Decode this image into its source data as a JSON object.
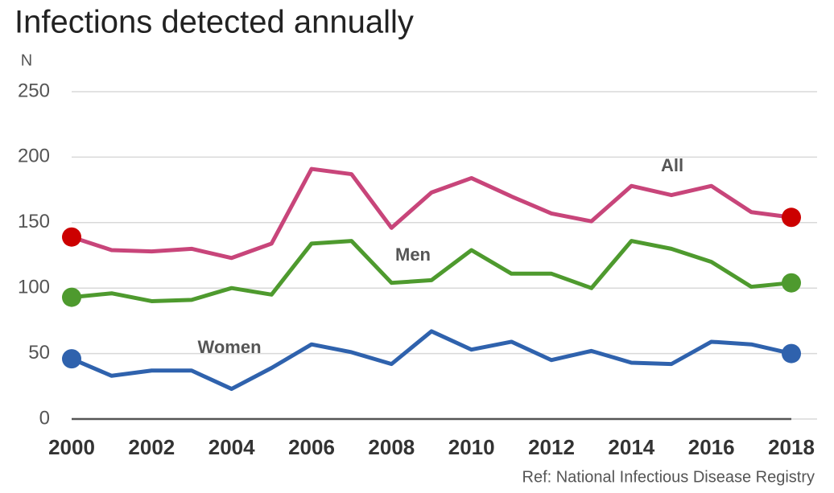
{
  "chart_data": {
    "type": "line",
    "title": "Infections detected annually",
    "y_label": "N",
    "source": "Ref: National Infectious Disease Registry",
    "x": [
      2000,
      2001,
      2002,
      2003,
      2004,
      2005,
      2006,
      2007,
      2008,
      2009,
      2010,
      2011,
      2012,
      2013,
      2014,
      2015,
      2016,
      2017,
      2018
    ],
    "xlim": [
      2000,
      2018
    ],
    "xticks": [
      2000,
      2002,
      2004,
      2006,
      2008,
      2010,
      2012,
      2014,
      2016,
      2018
    ],
    "ylim": [
      0,
      250
    ],
    "yticks": [
      0,
      50,
      100,
      150,
      200,
      250
    ],
    "grid": true,
    "series": [
      {
        "name": "All",
        "color": "#c8457a",
        "endpoint_color": "#cc0000",
        "values": [
          139,
          129,
          128,
          130,
          123,
          134,
          191,
          187,
          146,
          173,
          184,
          170,
          157,
          151,
          178,
          171,
          178,
          158,
          154
        ]
      },
      {
        "name": "Men",
        "color": "#4e9a2e",
        "endpoint_color": "#4e9a2e",
        "values": [
          93,
          96,
          90,
          91,
          100,
          95,
          134,
          136,
          104,
          106,
          129,
          111,
          111,
          100,
          136,
          130,
          120,
          101,
          104
        ]
      },
      {
        "name": "Women",
        "color": "#2f62ad",
        "endpoint_color": "#2f62ad",
        "values": [
          46,
          33,
          37,
          37,
          23,
          39,
          57,
          51,
          42,
          67,
          53,
          59,
          45,
          52,
          43,
          42,
          59,
          57,
          50
        ]
      }
    ]
  }
}
